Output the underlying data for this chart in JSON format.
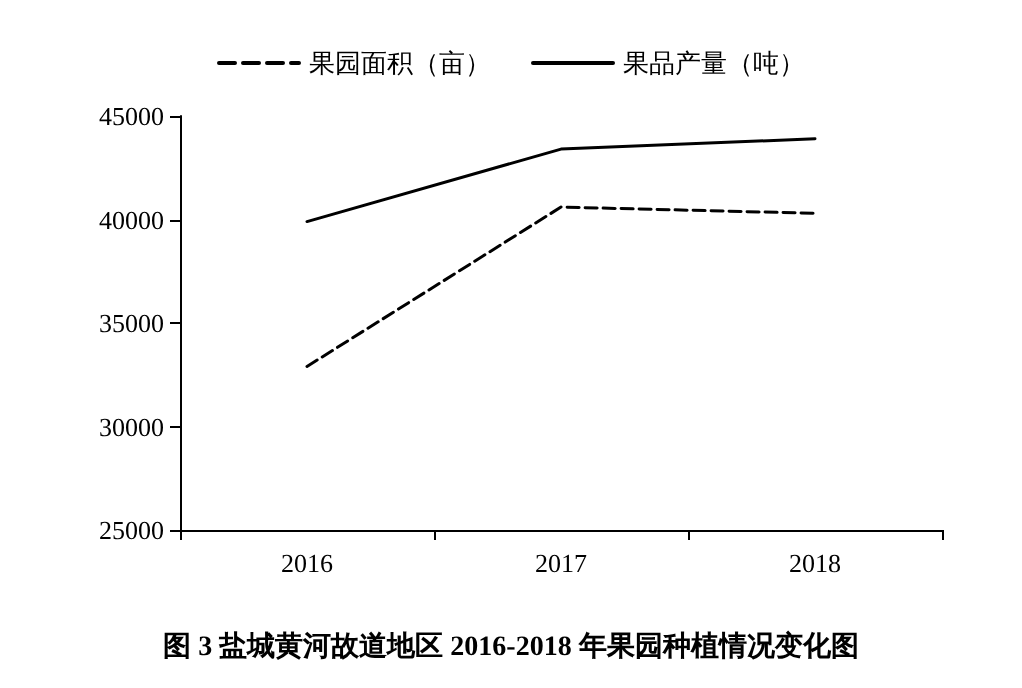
{
  "chart_data": {
    "type": "line",
    "title": "图 3 盐城黄河故道地区 2016-2018 年果园种植情况变化图",
    "categories": [
      "2016",
      "2017",
      "2018"
    ],
    "series": [
      {
        "name": "果园面积（亩）",
        "color": "#000000",
        "line_style": "dashed",
        "values": [
          32900,
          40600,
          40300
        ]
      },
      {
        "name": "果品产量（吨）",
        "color": "#000000",
        "line_style": "solid",
        "values": [
          39900,
          43400,
          43900
        ]
      }
    ],
    "ylim": [
      25000,
      45000
    ],
    "yticks": [
      25000,
      30000,
      35000,
      40000,
      45000
    ],
    "grid": false,
    "legend": "top",
    "marker": "none"
  }
}
